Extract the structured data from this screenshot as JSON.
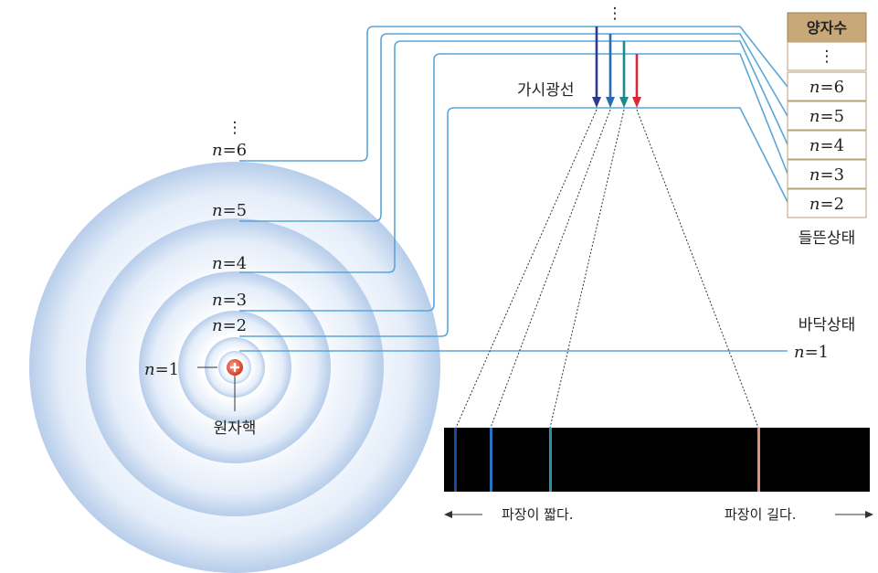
{
  "atom": {
    "nucleus_label": "원자핵",
    "ellipsis": "⋮",
    "levels": [
      {
        "n": "n",
        "eq": "=6"
      },
      {
        "n": "n",
        "eq": "=5"
      },
      {
        "n": "n",
        "eq": "=4"
      },
      {
        "n": "n",
        "eq": "=3"
      },
      {
        "n": "n",
        "eq": "=2"
      },
      {
        "n": "n",
        "eq": "=1"
      }
    ]
  },
  "visible_light_label": "가시광선",
  "top_ellipsis": "⋮",
  "table": {
    "header": "양자수",
    "ellipsis": "⋮",
    "rows": [
      {
        "n": "n",
        "eq": "=6"
      },
      {
        "n": "n",
        "eq": "=5"
      },
      {
        "n": "n",
        "eq": "=4"
      },
      {
        "n": "n",
        "eq": "=3"
      },
      {
        "n": "n",
        "eq": "=2"
      }
    ],
    "excited_label": "들뜬상태"
  },
  "ground": {
    "label": "바닥상태",
    "n": "n",
    "eq": "=1"
  },
  "spectrum": {
    "short_caption": "파장이 짧다.",
    "long_caption": "파장이 길다."
  },
  "colors": {
    "arrow_violet": "#2e3a8f",
    "arrow_blue": "#2a6ab0",
    "arrow_teal": "#1b8a8a",
    "arrow_red": "#d8283a",
    "line_violet": "#1a4aa0",
    "line_blue": "#2a70c0",
    "line_teal": "#2a90a8",
    "line_red": "#e0907a",
    "orbit": "#5aa6d8"
  }
}
